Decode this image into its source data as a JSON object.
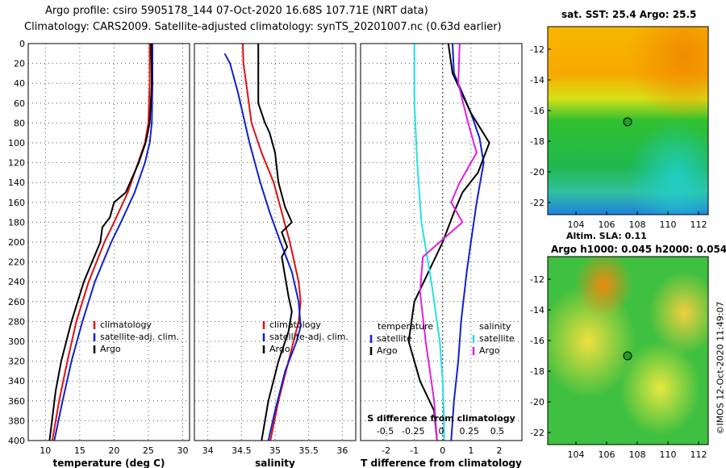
{
  "title": {
    "line1": "Argo profile: csiro 5905178_144 07-Oct-2020 16.68S 107.71E (NRT data)",
    "line2": "Climatology: CARS2009. Satellite-adjusted climatology: synTS_20201007.nc (0.63d earlier)"
  },
  "colors": {
    "climatology": "#e01010",
    "satellite": "#1020d0",
    "argo": "#000000",
    "cyan": "#22e0e8",
    "magenta": "#e020e0"
  },
  "chart_data": [
    {
      "type": "line",
      "title": "",
      "xlabel": "temperature (deg C)",
      "ylabel": "depth",
      "xlim": [
        7.5,
        31
      ],
      "ylim": [
        400,
        0
      ],
      "xticks": [
        10,
        15,
        20,
        25,
        30
      ],
      "yticks": [
        0,
        20,
        40,
        60,
        80,
        100,
        120,
        140,
        160,
        180,
        200,
        220,
        240,
        260,
        280,
        300,
        320,
        340,
        360,
        380,
        400
      ],
      "legend": [
        "climatology",
        "satellite-adj. clim.",
        "Argo"
      ],
      "series": [
        {
          "name": "climatology",
          "color": "#e01010",
          "points": [
            [
              25.2,
              0
            ],
            [
              25.2,
              40
            ],
            [
              25.0,
              80
            ],
            [
              24.5,
              100
            ],
            [
              23.5,
              120
            ],
            [
              22.0,
              150
            ],
            [
              20.0,
              180
            ],
            [
              18.6,
              200
            ],
            [
              16.3,
              240
            ],
            [
              14.5,
              280
            ],
            [
              13.2,
              320
            ],
            [
              12.0,
              360
            ],
            [
              11.0,
              400
            ]
          ]
        },
        {
          "name": "satellite-adj. clim.",
          "color": "#1020d0",
          "points": [
            [
              25.6,
              0
            ],
            [
              25.6,
              40
            ],
            [
              25.5,
              80
            ],
            [
              25.2,
              100
            ],
            [
              24.5,
              120
            ],
            [
              23.0,
              150
            ],
            [
              21.0,
              180
            ],
            [
              19.6,
              200
            ],
            [
              17.2,
              240
            ],
            [
              15.4,
              280
            ],
            [
              13.8,
              320
            ],
            [
              12.5,
              360
            ],
            [
              11.3,
              400
            ]
          ]
        },
        {
          "name": "Argo",
          "color": "#000000",
          "points": [
            [
              25.4,
              0
            ],
            [
              25.5,
              40
            ],
            [
              25.2,
              80
            ],
            [
              24.6,
              100
            ],
            [
              23.6,
              120
            ],
            [
              21.7,
              150
            ],
            [
              20.0,
              160
            ],
            [
              19.4,
              175
            ],
            [
              18.3,
              185
            ],
            [
              18.0,
              200
            ],
            [
              15.6,
              240
            ],
            [
              13.8,
              280
            ],
            [
              12.3,
              320
            ],
            [
              11.5,
              350
            ],
            [
              10.6,
              400
            ]
          ]
        }
      ]
    },
    {
      "type": "line",
      "title": "",
      "xlabel": "salinity",
      "ylabel": "depth",
      "xlim": [
        33.8,
        36.2
      ],
      "ylim": [
        400,
        0
      ],
      "xticks": [
        34,
        34.5,
        35,
        35.5,
        36
      ],
      "legend": [
        "climatology",
        "satellite-adj. clim.",
        "Argo"
      ],
      "series": [
        {
          "name": "climatology",
          "color": "#e01010",
          "points": [
            [
              34.52,
              0
            ],
            [
              34.53,
              20
            ],
            [
              34.57,
              40
            ],
            [
              34.65,
              80
            ],
            [
              34.8,
              110
            ],
            [
              34.98,
              140
            ],
            [
              35.1,
              170
            ],
            [
              35.22,
              200
            ],
            [
              35.35,
              240
            ],
            [
              35.38,
              260
            ],
            [
              35.35,
              280
            ],
            [
              35.2,
              320
            ],
            [
              35.05,
              360
            ],
            [
              34.93,
              400
            ]
          ]
        },
        {
          "name": "satellite-adj. clim.",
          "color": "#1020d0",
          "points": [
            [
              34.25,
              10
            ],
            [
              34.33,
              20
            ],
            [
              34.45,
              50
            ],
            [
              34.62,
              100
            ],
            [
              34.78,
              140
            ],
            [
              34.92,
              170
            ],
            [
              35.08,
              200
            ],
            [
              35.25,
              230
            ],
            [
              35.35,
              260
            ],
            [
              35.38,
              285
            ],
            [
              35.32,
              300
            ],
            [
              35.15,
              330
            ],
            [
              35.0,
              370
            ],
            [
              34.9,
              400
            ]
          ]
        },
        {
          "name": "Argo",
          "color": "#000000",
          "points": [
            [
              34.75,
              0
            ],
            [
              34.75,
              60
            ],
            [
              34.85,
              80
            ],
            [
              34.92,
              90
            ],
            [
              35.0,
              110
            ],
            [
              35.05,
              140
            ],
            [
              35.15,
              165
            ],
            [
              35.25,
              180
            ],
            [
              35.1,
              190
            ],
            [
              35.18,
              205
            ],
            [
              35.1,
              215
            ],
            [
              35.15,
              235
            ],
            [
              35.2,
              255
            ],
            [
              35.25,
              270
            ],
            [
              35.2,
              290
            ],
            [
              35.05,
              320
            ],
            [
              34.9,
              360
            ],
            [
              34.8,
              400
            ]
          ]
        }
      ]
    },
    {
      "type": "line",
      "title": "",
      "xlabel": "T difference from climatology",
      "ylabel": "depth",
      "xlim": [
        -2.9,
        2.8
      ],
      "ylim": [
        400,
        0
      ],
      "xticks": [
        -2,
        -1,
        0,
        1,
        2
      ],
      "top_axis": {
        "label": "S difference from climatology",
        "ticks": [
          -0.5,
          -0.25,
          0,
          0.25,
          0.5
        ],
        "tick_labels": [
          "-0.5",
          "-0.25",
          "0",
          "0.25",
          "0.5"
        ]
      },
      "legend_left": {
        "heading": "temperature",
        "items": [
          "satellite",
          "Argo"
        ]
      },
      "legend_right": {
        "heading": "salinity",
        "items": [
          "satellite",
          "Argo"
        ]
      },
      "series": [
        {
          "name": "temperature satellite",
          "color": "#1020d0",
          "points": [
            [
              0.35,
              0
            ],
            [
              0.4,
              30
            ],
            [
              1.0,
              70
            ],
            [
              1.3,
              95
            ],
            [
              1.45,
              120
            ],
            [
              1.2,
              160
            ],
            [
              1.0,
              200
            ],
            [
              0.85,
              230
            ],
            [
              0.65,
              280
            ],
            [
              0.55,
              320
            ],
            [
              0.4,
              360
            ],
            [
              0.3,
              400
            ]
          ]
        },
        {
          "name": "temperature Argo",
          "color": "#000000",
          "points": [
            [
              0.2,
              0
            ],
            [
              0.35,
              30
            ],
            [
              1.0,
              70
            ],
            [
              1.65,
              100
            ],
            [
              1.25,
              130
            ],
            [
              0.7,
              150
            ],
            [
              0.4,
              170
            ],
            [
              0.0,
              200
            ],
            [
              -0.5,
              230
            ],
            [
              -1.0,
              260
            ],
            [
              -1.2,
              300
            ],
            [
              -0.8,
              340
            ],
            [
              -0.3,
              370
            ],
            [
              -0.2,
              400
            ]
          ]
        },
        {
          "name": "salinity satellite",
          "color": "#22e0e8",
          "points": [
            [
              -1.0,
              0
            ],
            [
              -1.0,
              60
            ],
            [
              -0.9,
              120
            ],
            [
              -0.75,
              180
            ],
            [
              -0.4,
              240
            ],
            [
              -0.1,
              300
            ],
            [
              0.0,
              340
            ],
            [
              0.05,
              380
            ],
            [
              0.05,
              400
            ]
          ]
        },
        {
          "name": "salinity Argo",
          "color": "#e020e0",
          "points": [
            [
              0.6,
              0
            ],
            [
              0.55,
              40
            ],
            [
              0.9,
              80
            ],
            [
              1.2,
              110
            ],
            [
              0.6,
              140
            ],
            [
              0.3,
              160
            ],
            [
              0.7,
              180
            ],
            [
              -0.1,
              200
            ],
            [
              -0.7,
              215
            ],
            [
              -0.8,
              250
            ],
            [
              -0.6,
              300
            ],
            [
              -0.3,
              360
            ],
            [
              -0.2,
              400
            ]
          ]
        }
      ]
    }
  ],
  "maps": {
    "top": {
      "title": "sat. SST: 25.4 Argo: 25.5",
      "xlabel": "Altim. SLA: 0.11",
      "xticks": [
        "104",
        "106",
        "108",
        "110",
        "112"
      ],
      "yticks": [
        "-12",
        "-14",
        "-16",
        "-18",
        "-20",
        "-22"
      ]
    },
    "bottom": {
      "title": "Argo h1000: 0.045 h2000: 0.054",
      "xticks": [
        "104",
        "106",
        "108",
        "110",
        "112"
      ],
      "yticks": [
        "-12",
        "-14",
        "-16",
        "-18",
        "-20",
        "-22"
      ]
    }
  },
  "watermark": "©IMOS 12-Oct-2020 11:49:07"
}
